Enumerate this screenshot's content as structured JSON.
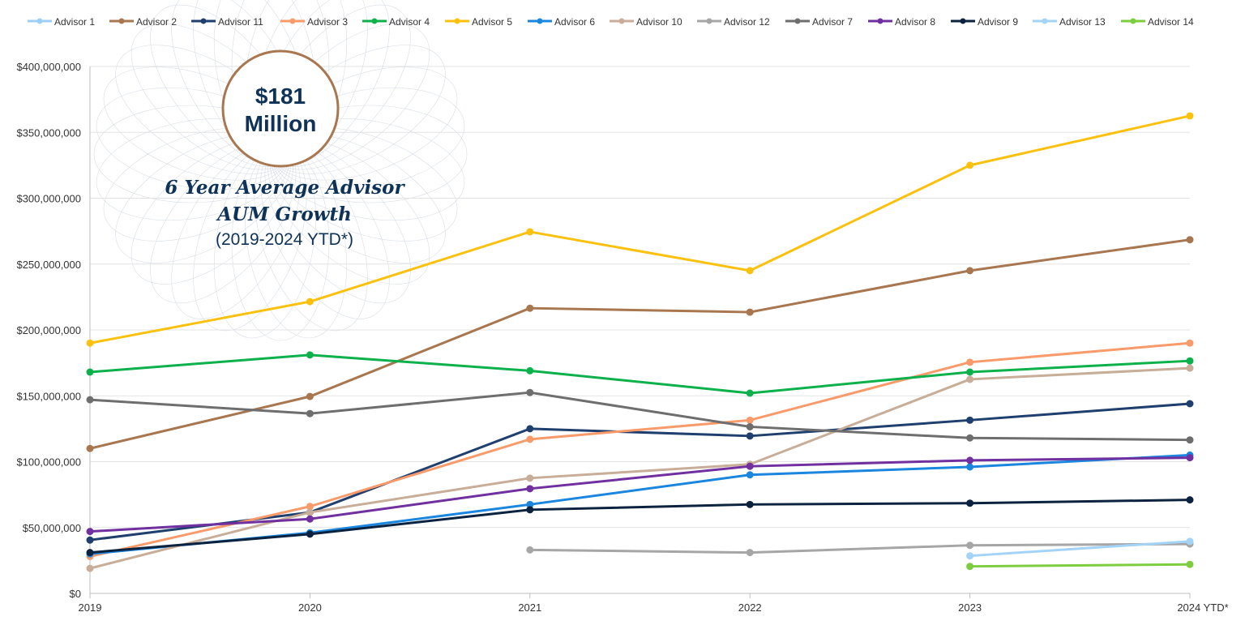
{
  "badge": {
    "amount": "$181",
    "unit": "Million",
    "title_line1": "6 Year Average Advisor",
    "title_line2": "AUM Growth",
    "subtitle": "(2019-2024 YTD*)"
  },
  "chart_data": {
    "type": "line",
    "title": "6 Year Average Advisor AUM Growth (2019-2024 YTD*)",
    "xlabel": "",
    "ylabel": "",
    "categories": [
      "2019",
      "2020",
      "2021",
      "2022",
      "2023",
      "2024 YTD*"
    ],
    "ylim": [
      0,
      400000000
    ],
    "yticks": [
      0,
      50000000,
      100000000,
      150000000,
      200000000,
      250000000,
      300000000,
      350000000,
      400000000
    ],
    "ytick_labels": [
      "$0",
      "$50,000,000",
      "$100,000,000",
      "$150,000,000",
      "$200,000,000",
      "$250,000,000",
      "$300,000,000",
      "$350,000,000",
      "$400,000,000"
    ],
    "grid": true,
    "legend_position": "top",
    "series": [
      {
        "name": "Advisor 1",
        "color": "#9dcff5",
        "values": [
          null,
          null,
          null,
          null,
          null,
          null
        ]
      },
      {
        "name": "Advisor 2",
        "color": "#a8764f",
        "values": [
          110000000,
          149500000,
          216500000,
          213500000,
          245000000,
          268500000
        ]
      },
      {
        "name": "Advisor 11",
        "color": "#1f3f6e",
        "values": [
          40500000,
          61500000,
          125000000,
          119500000,
          131500000,
          144000000
        ]
      },
      {
        "name": "Advisor 3",
        "color": "#f99a6a",
        "values": [
          28000000,
          66000000,
          117000000,
          131500000,
          175500000,
          190000000
        ]
      },
      {
        "name": "Advisor 4",
        "color": "#0db14b",
        "values": [
          168000000,
          181000000,
          169000000,
          152000000,
          168000000,
          176500000
        ]
      },
      {
        "name": "Advisor 5",
        "color": "#fcc10f",
        "values": [
          190000000,
          221500000,
          274500000,
          245000000,
          325000000,
          362500000
        ]
      },
      {
        "name": "Advisor 6",
        "color": "#1b86de",
        "values": [
          30000000,
          46000000,
          67500000,
          90000000,
          96000000,
          105000000
        ]
      },
      {
        "name": "Advisor 10",
        "color": "#c8ad98",
        "values": [
          19000000,
          61500000,
          87500000,
          98000000,
          162500000,
          171000000
        ]
      },
      {
        "name": "Advisor 12",
        "color": "#a6a6a6",
        "values": [
          null,
          null,
          33000000,
          31000000,
          36500000,
          37500000
        ]
      },
      {
        "name": "Advisor 7",
        "color": "#6e6e6e",
        "values": [
          147000000,
          136500000,
          152500000,
          126500000,
          118000000,
          116500000
        ]
      },
      {
        "name": "Advisor 8",
        "color": "#7030a0",
        "values": [
          47000000,
          56500000,
          79500000,
          96500000,
          101000000,
          103000000
        ]
      },
      {
        "name": "Advisor 9",
        "color": "#0c2340",
        "values": [
          31000000,
          45000000,
          63500000,
          67500000,
          68500000,
          71000000
        ]
      },
      {
        "name": "Advisor 13",
        "color": "#a3d4f7",
        "values": [
          null,
          null,
          null,
          null,
          28500000,
          39500000
        ]
      },
      {
        "name": "Advisor 14",
        "color": "#7dcd40",
        "values": [
          null,
          null,
          null,
          null,
          20500000,
          22000000
        ]
      }
    ]
  }
}
